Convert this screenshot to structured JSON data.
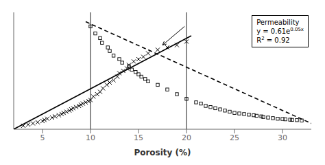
{
  "chart_data": {
    "type": "scatter",
    "xlabel": "Porosity (%)",
    "xlim": [
      2,
      33
    ],
    "ylim": [
      0,
      100
    ],
    "xticks": [
      5,
      10,
      15,
      20,
      25,
      30
    ],
    "tick_labels": "x",
    "color": "#000000",
    "series": [
      {
        "type": "scatter",
        "marker": "x",
        "x": [
          3,
          3.5,
          4,
          4.5,
          5,
          5.2,
          5.5,
          6,
          6.3,
          6.7,
          7,
          7.2,
          7.5,
          7.8,
          8,
          8.2,
          8.5,
          8.8,
          9,
          9.2,
          9.5,
          9.8,
          10,
          10.3,
          10.7,
          11,
          11.3,
          11.7,
          12,
          12.4,
          12.8,
          13,
          13.4,
          13.8,
          14,
          14.5,
          15,
          15.5,
          16,
          17,
          18,
          19,
          20
        ],
        "values": [
          3,
          4,
          5,
          6,
          7,
          8,
          9,
          10,
          11,
          12,
          13,
          14,
          15,
          16,
          17,
          18,
          19,
          20,
          21,
          22,
          23,
          24,
          25,
          28,
          30,
          32,
          35,
          38,
          40,
          42,
          45,
          48,
          50,
          52,
          55,
          58,
          60,
          62,
          65,
          68,
          70,
          72,
          75
        ]
      },
      {
        "type": "scatter",
        "marker": "square",
        "x": [
          10,
          10.5,
          11,
          11.2,
          11.8,
          12,
          12.4,
          13,
          13.3,
          14,
          14.3,
          14.7,
          15,
          15.3,
          15.7,
          16,
          17,
          18,
          19,
          20,
          21,
          21.5,
          22,
          22.5,
          23,
          23.5,
          24,
          24.5,
          25,
          25.5,
          26,
          26.5,
          27,
          27.3,
          27.8,
          28,
          28.5,
          29,
          29.5,
          30,
          30.3,
          30.8,
          31,
          31.5,
          32
        ],
        "values": [
          88,
          82,
          78,
          74,
          70,
          67,
          63,
          60,
          57,
          54,
          51,
          49,
          47,
          45,
          43,
          41,
          38,
          34,
          30,
          26,
          23,
          22,
          20,
          19,
          18,
          17,
          16,
          15,
          14,
          13.5,
          13,
          12.5,
          12,
          11.5,
          11,
          10.5,
          10,
          9.5,
          9,
          8.8,
          8.5,
          8.2,
          8,
          7.8,
          7.5
        ]
      },
      {
        "type": "line",
        "line_style": "solid",
        "x": [
          2,
          20.5
        ],
        "values": [
          0,
          80
        ]
      },
      {
        "type": "line",
        "line_style": "dashed",
        "x": [
          9.5,
          33
        ],
        "values": [
          92,
          5
        ]
      }
    ],
    "vlines": [
      10,
      20
    ],
    "arrow": {
      "x": [
        19.8,
        17.5
      ],
      "values": [
        88,
        72
      ]
    },
    "annotations": [
      {
        "lines": [
          [
            {
              "text": "Permeability"
            }
          ],
          [
            {
              "text": "y = 0.61e"
            },
            {
              "text": "0.05x",
              "sup": true
            }
          ],
          [
            {
              "text": "R"
            },
            {
              "text": "2",
              "sup": true
            },
            {
              "text": " = 0.92"
            }
          ]
        ]
      }
    ]
  }
}
